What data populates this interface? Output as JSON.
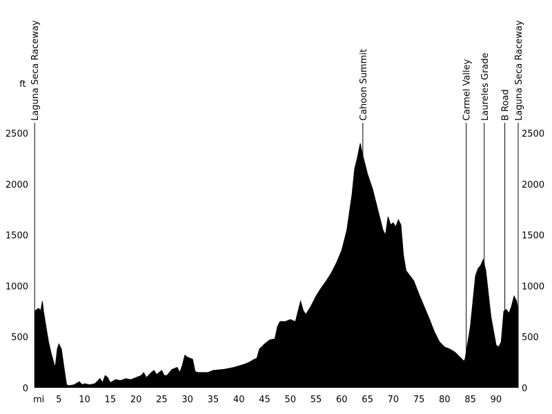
{
  "chart_data": {
    "type": "area",
    "color": "#000000",
    "x_label": "mi",
    "y_label": "ft",
    "x": [
      0.3,
      1,
      1.5,
      1.8,
      2,
      2.5,
      3,
      3.5,
      4,
      4.3,
      4.7,
      5,
      5.5,
      6,
      6.5,
      7,
      8,
      9,
      9.5,
      10,
      11,
      12,
      13,
      13.5,
      14,
      14.5,
      15,
      16,
      17,
      18,
      19,
      20,
      21,
      21.5,
      22,
      23,
      23.5,
      24,
      25,
      25.5,
      26,
      27,
      28,
      28.5,
      29,
      29.5,
      30,
      31,
      31.5,
      32,
      34,
      35,
      37,
      39,
      41,
      42,
      43,
      43.5,
      44,
      45,
      46,
      47,
      47.5,
      48,
      49,
      50,
      51,
      51.5,
      52,
      52.5,
      53,
      54,
      55,
      56,
      57,
      58,
      59,
      60,
      61,
      62,
      62.5,
      63,
      63.6,
      64,
      65,
      66,
      67,
      68,
      68.5,
      69,
      69.5,
      70,
      70.5,
      71,
      71.5,
      72,
      72.5,
      74,
      75,
      76,
      77,
      78,
      79,
      80,
      81,
      82,
      83,
      83.8,
      84,
      85,
      86,
      86.5,
      87,
      87.5,
      88,
      89,
      90,
      90.5,
      91,
      91.5,
      92,
      92.5,
      93,
      93.5,
      94,
      94.3
    ],
    "values": [
      750,
      780,
      760,
      850,
      760,
      600,
      450,
      340,
      250,
      200,
      380,
      430,
      380,
      200,
      30,
      20,
      30,
      60,
      30,
      40,
      30,
      40,
      90,
      50,
      120,
      100,
      50,
      80,
      70,
      90,
      80,
      100,
      120,
      150,
      100,
      150,
      170,
      130,
      170,
      120,
      120,
      180,
      200,
      150,
      220,
      320,
      300,
      280,
      160,
      150,
      150,
      170,
      180,
      200,
      230,
      250,
      280,
      290,
      380,
      430,
      470,
      480,
      600,
      650,
      650,
      670,
      650,
      750,
      850,
      760,
      720,
      800,
      900,
      980,
      1050,
      1130,
      1230,
      1350,
      1550,
      1900,
      2150,
      2250,
      2400,
      2300,
      2100,
      1950,
      1750,
      1550,
      1500,
      1680,
      1600,
      1620,
      1580,
      1650,
      1600,
      1300,
      1150,
      1050,
      920,
      800,
      680,
      550,
      450,
      400,
      380,
      350,
      300,
      260,
      290,
      600,
      1100,
      1170,
      1200,
      1260,
      1150,
      700,
      420,
      400,
      450,
      750,
      770,
      730,
      800,
      900,
      850,
      750
    ],
    "xlim": [
      0,
      94.3
    ],
    "xticks": [
      5,
      10,
      15,
      20,
      25,
      30,
      35,
      40,
      45,
      50,
      55,
      60,
      65,
      70,
      75,
      80,
      85,
      90
    ],
    "ylim": [
      0,
      2500
    ],
    "yticks": [
      0,
      500,
      1000,
      1500,
      2000,
      2500
    ],
    "annotations": [
      {
        "text": "Laguna Seca Raceway",
        "x": 0.3
      },
      {
        "text": "Cahoon Summit",
        "x": 64.1
      },
      {
        "text": "Carmel Valley",
        "x": 84.2
      },
      {
        "text": "Laureles Grade",
        "x": 87.7
      },
      {
        "text": "B Road",
        "x": 91.7
      },
      {
        "text": "Laguna Seca Raceway",
        "x": 94.3
      }
    ]
  }
}
